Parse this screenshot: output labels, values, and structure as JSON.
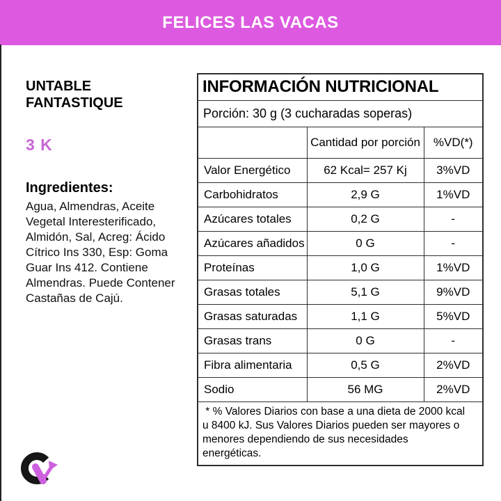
{
  "header": {
    "brand": "FELICES LAS VACAS"
  },
  "product": {
    "name": "UNTABLE\nFANTASTIQUE",
    "size": "3 K",
    "ingredients_label": "Ingredientes:",
    "ingredients": "Agua, Almendras, Aceite\nVegetal Interesterificado,\nAlmidón, Sal, Acreg: Ácido\nCítrico Ins 330, Esp: Goma\nGuar Ins 412. Contiene\nAlmendras. Puede Contener\nCastañas de Cajú."
  },
  "nutrition_table": {
    "title": "INFORMACIÓN NUTRICIONAL",
    "portion": "Porción: 30 g (3 cucharadas soperas)",
    "columns": [
      "",
      "Cantidad por porción",
      "%VD(*)"
    ],
    "rows": [
      {
        "label": "Valor Energético",
        "amount": "62 Kcal= 257 Kj",
        "vd": "3%VD"
      },
      {
        "label": "Carbohidratos",
        "amount": "2,9 G",
        "vd": "1%VD"
      },
      {
        "label": "Azúcares totales",
        "amount": "0,2 G",
        "vd": "-"
      },
      {
        "label": "Azúcares añadidos",
        "amount": "0 G",
        "vd": "-"
      },
      {
        "label": "Proteínas",
        "amount": "1,0 G",
        "vd": "1%VD"
      },
      {
        "label": "Grasas totales",
        "amount": "5,1 G",
        "vd": "9%VD"
      },
      {
        "label": "Grasas saturadas",
        "amount": "1,1 G",
        "vd": "5%VD"
      },
      {
        "label": "Grasas trans",
        "amount": "0 G",
        "vd": "-"
      },
      {
        "label": "Fibra alimentaria",
        "amount": "0,5 G",
        "vd": "2%VD"
      },
      {
        "label": "Sodio",
        "amount": "56 MG",
        "vd": "2%VD"
      }
    ],
    "footnote": " * % Valores Diarios con base a una dieta de 2000 kcal\nu 8400 kJ. Sus Valores Diarios pueden ser mayores o\nmenores dependiendo de sus necesidades\nenergéticas."
  },
  "logo": {
    "letter": "C"
  },
  "colors": {
    "banner": "#dd5ae0",
    "size_text": "#c966d6",
    "logo_accent": "#ce5fe0",
    "table_border": "#2e2e2e"
  }
}
